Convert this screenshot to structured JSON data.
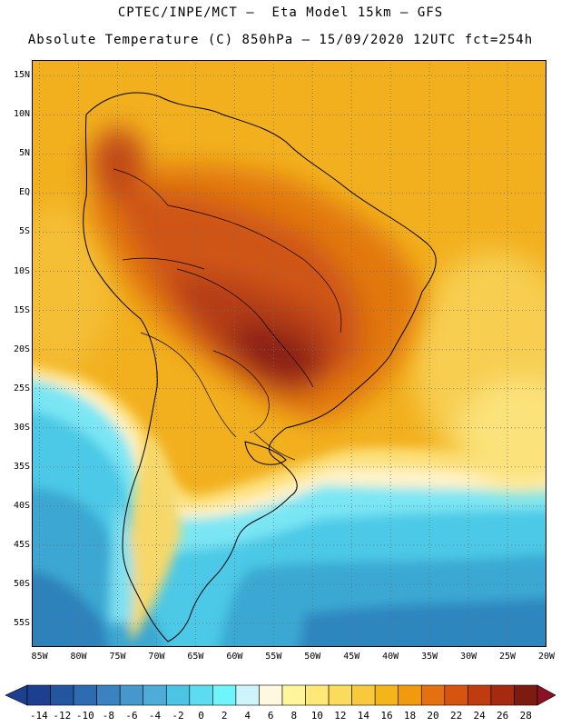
{
  "title_line1": "CPTEC/INPE/MCT –  Eta Model 15km – GFS",
  "title_line2": "Absolute Temperature (C) 850hPa – 15/09/2020 12UTC fct=254h",
  "map": {
    "lon_range": [
      -86,
      -20
    ],
    "lat_range": [
      -58,
      17
    ],
    "lat_labels": [
      {
        "text": "15N",
        "lat": 15
      },
      {
        "text": "10N",
        "lat": 10
      },
      {
        "text": "5N",
        "lat": 5
      },
      {
        "text": "EQ",
        "lat": 0
      },
      {
        "text": "5S",
        "lat": -5
      },
      {
        "text": "10S",
        "lat": -10
      },
      {
        "text": "15S",
        "lat": -15
      },
      {
        "text": "20S",
        "lat": -20
      },
      {
        "text": "25S",
        "lat": -25
      },
      {
        "text": "30S",
        "lat": -30
      },
      {
        "text": "35S",
        "lat": -35
      },
      {
        "text": "40S",
        "lat": -40
      },
      {
        "text": "45S",
        "lat": -45
      },
      {
        "text": "50S",
        "lat": -50
      },
      {
        "text": "55S",
        "lat": -55
      }
    ],
    "lon_labels": [
      {
        "text": "85W",
        "lon": -85
      },
      {
        "text": "80W",
        "lon": -80
      },
      {
        "text": "75W",
        "lon": -75
      },
      {
        "text": "70W",
        "lon": -70
      },
      {
        "text": "65W",
        "lon": -65
      },
      {
        "text": "60W",
        "lon": -60
      },
      {
        "text": "55W",
        "lon": -55
      },
      {
        "text": "50W",
        "lon": -50
      },
      {
        "text": "45W",
        "lon": -45
      },
      {
        "text": "40W",
        "lon": -40
      },
      {
        "text": "35W",
        "lon": -35
      },
      {
        "text": "30W",
        "lon": -30
      },
      {
        "text": "25W",
        "lon": -25
      },
      {
        "text": "20W",
        "lon": -20
      }
    ]
  },
  "colorbar": {
    "labels": [
      "-14",
      "-12",
      "-10",
      "-8",
      "-6",
      "-4",
      "-2",
      "0",
      "2",
      "4",
      "6",
      "8",
      "10",
      "12",
      "14",
      "16",
      "18",
      "20",
      "22",
      "24",
      "26",
      "28"
    ],
    "colors": [
      "#1c3f8f",
      "#2456a0",
      "#2e6bb0",
      "#3a82c0",
      "#4597cc",
      "#4facd8",
      "#4cc4e4",
      "#5cdcee",
      "#6ff4fa",
      "#cdf4fa",
      "#fff8e0",
      "#fff59a",
      "#fde878",
      "#fbdb5c",
      "#f7c93c",
      "#f4b41c",
      "#f19a10",
      "#e57010",
      "#d45410",
      "#bf3c10",
      "#a52a10",
      "#7c1c10"
    ],
    "low_color": "#1c3f8f",
    "high_color": "#8b0f25"
  }
}
